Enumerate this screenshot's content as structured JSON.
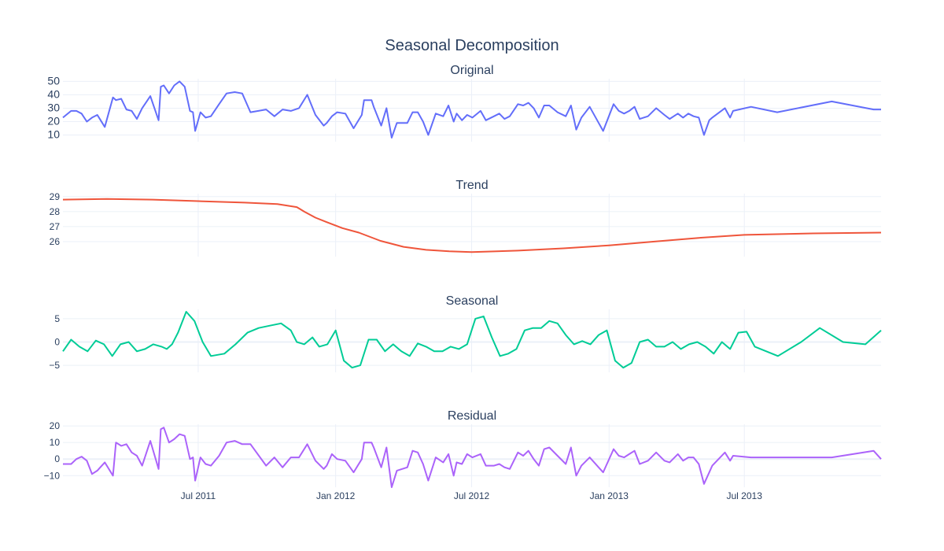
{
  "chart_data": {
    "type": "line",
    "title": "Seasonal Decomposition",
    "x_date_ticks": [
      {
        "label": "Jul 2011",
        "date": "2011-07-01"
      },
      {
        "label": "Jan 2012",
        "date": "2012-01-01"
      },
      {
        "label": "Jul 2012",
        "date": "2012-07-01"
      },
      {
        "label": "Jan 2013",
        "date": "2013-01-01"
      },
      {
        "label": "Jul 2013",
        "date": "2013-07-01"
      }
    ],
    "xlim": [
      "2011-01-01",
      "2013-12-31"
    ],
    "grid": true,
    "panels": [
      {
        "name": "Original",
        "color": "#636efa",
        "ylim": [
          5,
          52
        ],
        "yticks": [
          10,
          20,
          30,
          40,
          50
        ],
        "x": [
          "2011-01-01",
          "2011-01-12",
          "2011-01-19",
          "2011-01-26",
          "2011-02-02",
          "2011-02-09",
          "2011-02-16",
          "2011-02-26",
          "2011-03-09",
          "2011-03-13",
          "2011-03-20",
          "2011-03-27",
          "2011-04-03",
          "2011-04-10",
          "2011-04-17",
          "2011-04-28",
          "2011-05-09",
          "2011-05-12",
          "2011-05-16",
          "2011-05-23",
          "2011-05-30",
          "2011-06-06",
          "2011-06-13",
          "2011-06-20",
          "2011-06-24",
          "2011-06-27",
          "2011-07-04",
          "2011-07-11",
          "2011-07-18",
          "2011-07-29",
          "2011-08-08",
          "2011-08-19",
          "2011-08-29",
          "2011-09-09",
          "2011-09-30",
          "2011-10-11",
          "2011-10-22",
          "2011-11-02",
          "2011-11-13",
          "2011-11-24",
          "2011-12-05",
          "2011-12-16",
          "2011-12-20",
          "2011-12-27",
          "2012-01-03",
          "2012-01-14",
          "2012-01-25",
          "2012-02-05",
          "2012-02-08",
          "2012-02-18",
          "2012-02-21",
          "2012-03-02",
          "2012-03-09",
          "2012-03-16",
          "2012-03-23",
          "2012-03-30",
          "2012-04-06",
          "2012-04-13",
          "2012-04-20",
          "2012-04-27",
          "2012-05-04",
          "2012-05-14",
          "2012-05-24",
          "2012-05-31",
          "2012-06-07",
          "2012-06-11",
          "2012-06-18",
          "2012-06-25",
          "2012-07-02",
          "2012-07-13",
          "2012-07-20",
          "2012-07-31",
          "2012-08-07",
          "2012-08-14",
          "2012-08-21",
          "2012-09-01",
          "2012-09-08",
          "2012-09-15",
          "2012-09-22",
          "2012-09-29",
          "2012-10-06",
          "2012-10-13",
          "2012-10-24",
          "2012-11-04",
          "2012-11-11",
          "2012-11-18",
          "2012-11-25",
          "2012-12-06",
          "2012-12-24",
          "2013-01-07",
          "2013-01-14",
          "2013-01-21",
          "2013-01-28",
          "2013-02-04",
          "2013-02-11",
          "2013-02-22",
          "2013-03-05",
          "2013-03-16",
          "2013-03-23",
          "2013-04-03",
          "2013-04-10",
          "2013-04-17",
          "2013-04-24",
          "2013-05-01",
          "2013-05-08",
          "2013-05-15",
          "2013-05-19",
          "2013-06-05",
          "2013-06-12",
          "2013-06-16",
          "2013-07-10",
          "2013-08-14",
          "2013-10-26",
          "2013-12-21",
          "2013-12-31"
        ],
        "values": [
          23,
          28,
          28,
          26,
          20,
          23,
          25,
          16,
          38,
          36,
          37,
          29,
          28,
          22,
          30,
          39,
          21,
          46,
          47,
          41,
          47,
          50,
          46,
          28,
          27,
          13,
          27,
          23,
          24,
          33,
          41,
          42,
          41,
          27,
          29,
          24,
          29,
          28,
          30,
          40,
          25,
          17,
          19,
          24,
          27,
          26,
          15,
          25,
          36,
          36,
          31,
          17,
          30,
          8,
          19,
          19,
          19,
          27,
          27,
          20,
          10,
          26,
          24,
          32,
          20,
          26,
          21,
          25,
          23,
          28,
          21,
          24,
          26,
          22,
          24,
          33,
          32,
          34,
          30,
          23,
          32,
          32,
          27,
          24,
          32,
          14,
          23,
          31,
          13,
          33,
          28,
          26,
          28,
          31,
          22,
          24,
          30,
          25,
          22,
          26,
          23,
          26,
          24,
          23,
          10,
          21,
          23,
          30,
          23,
          28,
          31,
          27,
          35,
          29,
          29
        ]
      },
      {
        "name": "Trend",
        "color": "#ef553b",
        "ylim": [
          25,
          29.2
        ],
        "yticks": [
          26,
          27,
          28,
          29
        ],
        "x": [
          "2011-01-01",
          "2011-03-01",
          "2011-05-01",
          "2011-07-01",
          "2011-09-01",
          "2011-10-15",
          "2011-11-10",
          "2011-11-20",
          "2011-12-05",
          "2011-12-20",
          "2012-01-10",
          "2012-02-01",
          "2012-03-01",
          "2012-04-01",
          "2012-05-01",
          "2012-06-01",
          "2012-07-01",
          "2012-09-01",
          "2012-11-01",
          "2013-01-01",
          "2013-03-01",
          "2013-05-01",
          "2013-07-01",
          "2013-10-01",
          "2013-12-31"
        ],
        "values": [
          28.8,
          28.85,
          28.8,
          28.7,
          28.6,
          28.5,
          28.3,
          28.0,
          27.6,
          27.3,
          26.9,
          26.6,
          26.05,
          25.65,
          25.45,
          25.35,
          25.3,
          25.4,
          25.55,
          25.75,
          26.0,
          26.25,
          26.45,
          26.55,
          26.6
        ]
      },
      {
        "name": "Seasonal",
        "color": "#00cc96",
        "ylim": [
          -6.5,
          7
        ],
        "yticks": [
          -5,
          0,
          5
        ],
        "x": [
          "2011-01-01",
          "2011-01-12",
          "2011-01-23",
          "2011-02-03",
          "2011-02-14",
          "2011-02-25",
          "2011-03-08",
          "2011-03-19",
          "2011-03-30",
          "2011-04-10",
          "2011-04-21",
          "2011-05-02",
          "2011-05-13",
          "2011-05-20",
          "2011-05-27",
          "2011-06-04",
          "2011-06-15",
          "2011-06-26",
          "2011-07-07",
          "2011-07-18",
          "2011-08-05",
          "2011-08-20",
          "2011-09-05",
          "2011-09-20",
          "2011-10-05",
          "2011-10-20",
          "2011-11-02",
          "2011-11-10",
          "2011-11-20",
          "2011-12-01",
          "2011-12-10",
          "2011-12-21",
          "2012-01-01",
          "2012-01-12",
          "2012-01-23",
          "2012-02-03",
          "2012-02-14",
          "2012-02-25",
          "2012-03-07",
          "2012-03-18",
          "2012-03-29",
          "2012-04-09",
          "2012-04-20",
          "2012-05-01",
          "2012-05-12",
          "2012-05-23",
          "2012-06-03",
          "2012-06-14",
          "2012-06-25",
          "2012-07-06",
          "2012-07-17",
          "2012-07-28",
          "2012-08-08",
          "2012-08-19",
          "2012-08-30",
          "2012-09-10",
          "2012-09-21",
          "2012-10-02",
          "2012-10-13",
          "2012-10-24",
          "2012-11-04",
          "2012-11-15",
          "2012-11-26",
          "2012-12-07",
          "2012-12-18",
          "2012-12-29",
          "2013-01-09",
          "2013-01-20",
          "2013-01-31",
          "2013-02-11",
          "2013-02-22",
          "2013-03-05",
          "2013-03-16",
          "2013-03-27",
          "2013-04-07",
          "2013-04-18",
          "2013-04-29",
          "2013-05-10",
          "2013-05-21",
          "2013-06-01",
          "2013-06-12",
          "2013-06-23",
          "2013-07-04",
          "2013-07-15",
          "2013-08-15",
          "2013-09-15",
          "2013-10-10",
          "2013-11-10",
          "2013-12-10",
          "2013-12-31"
        ],
        "values": [
          -2,
          0.5,
          -1,
          -2,
          0.3,
          -0.5,
          -3,
          -0.5,
          0,
          -2,
          -1.5,
          -0.5,
          -1,
          -1.5,
          -0.5,
          2,
          6.5,
          4.5,
          0,
          -3,
          -2.5,
          -0.5,
          2,
          3,
          3.5,
          4,
          2.5,
          0,
          -0.5,
          1,
          -1,
          -0.5,
          2.5,
          -4,
          -5.5,
          -5,
          0.5,
          0.5,
          -2,
          -0.5,
          -2,
          -3,
          -0.3,
          -1,
          -2,
          -2,
          -1,
          -1.5,
          -0.5,
          5,
          5.5,
          1,
          -3,
          -2.5,
          -1.5,
          2.5,
          3,
          3,
          4.5,
          4,
          1.5,
          -0.5,
          0.2,
          -0.5,
          1.5,
          2.5,
          -4,
          -5.5,
          -4.5,
          0,
          0.5,
          -1,
          -1,
          0,
          -1.5,
          -0.5,
          0,
          -1,
          -2.5,
          0,
          -1.5,
          2,
          2.2,
          -1,
          -3,
          0,
          3,
          0,
          -0.5,
          2.5
        ]
      },
      {
        "name": "Residual",
        "color": "#ab63fa",
        "ylim": [
          -17,
          21
        ],
        "yticks": [
          -10,
          0,
          10,
          20
        ],
        "x": [
          "2011-01-01",
          "2011-01-12",
          "2011-01-19",
          "2011-01-26",
          "2011-02-02",
          "2011-02-09",
          "2011-02-16",
          "2011-02-26",
          "2011-03-09",
          "2011-03-13",
          "2011-03-20",
          "2011-03-27",
          "2011-04-03",
          "2011-04-10",
          "2011-04-17",
          "2011-04-28",
          "2011-05-09",
          "2011-05-12",
          "2011-05-16",
          "2011-05-23",
          "2011-05-30",
          "2011-06-06",
          "2011-06-13",
          "2011-06-20",
          "2011-06-24",
          "2011-06-27",
          "2011-07-04",
          "2011-07-11",
          "2011-07-18",
          "2011-07-29",
          "2011-08-08",
          "2011-08-19",
          "2011-08-29",
          "2011-09-09",
          "2011-09-30",
          "2011-10-11",
          "2011-10-22",
          "2011-11-02",
          "2011-11-13",
          "2011-11-24",
          "2011-12-05",
          "2011-12-16",
          "2011-12-20",
          "2011-12-27",
          "2012-01-03",
          "2012-01-14",
          "2012-01-25",
          "2012-02-05",
          "2012-02-08",
          "2012-02-18",
          "2012-02-21",
          "2012-03-02",
          "2012-03-09",
          "2012-03-16",
          "2012-03-23",
          "2012-03-30",
          "2012-04-06",
          "2012-04-13",
          "2012-04-20",
          "2012-04-27",
          "2012-05-04",
          "2012-05-14",
          "2012-05-24",
          "2012-05-31",
          "2012-06-07",
          "2012-06-11",
          "2012-06-18",
          "2012-06-25",
          "2012-07-02",
          "2012-07-13",
          "2012-07-20",
          "2012-07-31",
          "2012-08-07",
          "2012-08-14",
          "2012-08-21",
          "2012-09-01",
          "2012-09-08",
          "2012-09-15",
          "2012-09-22",
          "2012-09-29",
          "2012-10-06",
          "2012-10-13",
          "2012-10-24",
          "2012-11-04",
          "2012-11-11",
          "2012-11-18",
          "2012-11-25",
          "2012-12-06",
          "2012-12-24",
          "2013-01-07",
          "2013-01-14",
          "2013-01-21",
          "2013-01-28",
          "2013-02-04",
          "2013-02-11",
          "2013-02-22",
          "2013-03-05",
          "2013-03-16",
          "2013-03-23",
          "2013-04-03",
          "2013-04-10",
          "2013-04-17",
          "2013-04-24",
          "2013-05-01",
          "2013-05-08",
          "2013-05-15",
          "2013-05-19",
          "2013-06-05",
          "2013-06-12",
          "2013-06-16",
          "2013-07-10",
          "2013-08-14",
          "2013-10-26",
          "2013-12-21",
          "2013-12-31"
        ],
        "values": [
          -3,
          -3,
          0,
          1.5,
          -1,
          -9,
          -7,
          -2,
          -10,
          10,
          8,
          9,
          4,
          2,
          -4,
          11,
          -6,
          18,
          19,
          10,
          12,
          15,
          14,
          0,
          1,
          -13,
          1,
          -3,
          -4,
          2,
          10,
          11,
          9,
          9,
          -4,
          1,
          -5,
          1,
          1,
          9,
          -1,
          -6,
          -4,
          3,
          0,
          -1,
          -8,
          0,
          10,
          10,
          7,
          -5,
          7,
          -17,
          -7,
          -6,
          -5,
          5,
          4,
          -3,
          -13,
          1,
          -2,
          3,
          -10,
          -2,
          -3,
          3,
          1,
          3,
          -4,
          -4,
          -3,
          -5,
          -6,
          4,
          2,
          5,
          0,
          -4,
          6,
          7,
          2,
          -3,
          7,
          -10,
          -4,
          1,
          -8,
          6,
          2,
          1,
          3,
          5,
          -3,
          -1,
          4,
          -1,
          -2,
          3,
          -1,
          1,
          1,
          -3,
          -15,
          -8,
          -4,
          4,
          -1,
          2,
          1,
          1,
          1,
          5,
          0
        ]
      }
    ]
  }
}
